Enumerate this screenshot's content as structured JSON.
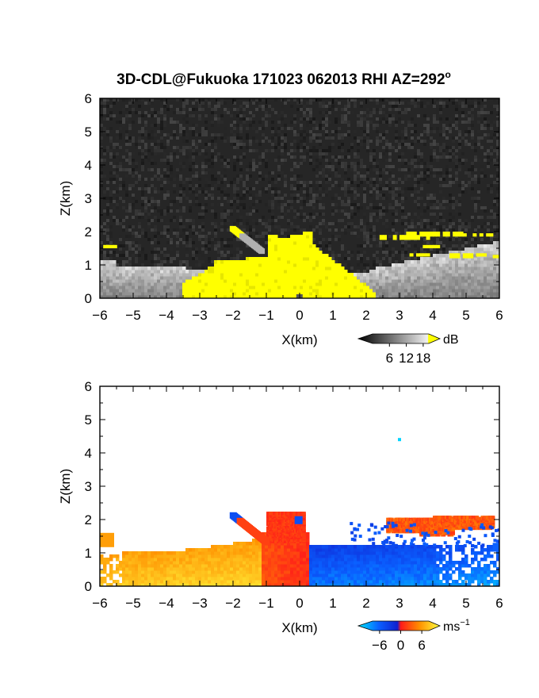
{
  "title_main": "3D-CDL@Fukuoka 171023 062013 RHI AZ=292",
  "title_sup": "o",
  "chart_data": [
    {
      "type": "heatmap",
      "quantity": "backscatter intensity",
      "xlabel": "X(km)",
      "ylabel": "Z(km)",
      "xlim": [
        -6,
        6
      ],
      "ylim": [
        0,
        6
      ],
      "xticks": [
        "-6",
        "-5",
        "-4",
        "-3",
        "-2",
        "-1",
        "0",
        "1",
        "2",
        "3",
        "4",
        "5",
        "6"
      ],
      "yticks": [
        "0",
        "1",
        "2",
        "3",
        "4",
        "5",
        "6"
      ],
      "colorbar": {
        "unit": "dB",
        "ticks": [
          "6",
          "12",
          "18"
        ],
        "tick_values": [
          6,
          12,
          18
        ],
        "range": [
          0,
          20
        ],
        "colors": [
          "#000000",
          "#ffffff",
          "#ffff00"
        ]
      },
      "background": "noise (dark grey, ~0-4 dB)",
      "features": [
        {
          "label": "strong echo core (>=18 dB)",
          "x_range": [
            -3.6,
            2.2
          ],
          "z_range": [
            0,
            2.1
          ]
        },
        {
          "label": "weak echo layer (8-16 dB)",
          "x_range": [
            -6,
            6
          ],
          "z_range": [
            0,
            1.6
          ]
        },
        {
          "label": "elevated echoes (>=18 dB)",
          "x_range": [
            2.4,
            5.8
          ],
          "z_range": [
            1.1,
            2.0
          ]
        }
      ]
    },
    {
      "type": "heatmap",
      "quantity": "Doppler velocity",
      "xlabel": "X(km)",
      "ylabel": "Z(km)",
      "xlim": [
        -6,
        6
      ],
      "ylim": [
        0,
        6
      ],
      "xticks": [
        "-6",
        "-5",
        "-4",
        "-3",
        "-2",
        "-1",
        "0",
        "1",
        "2",
        "3",
        "4",
        "5",
        "6"
      ],
      "yticks": [
        "0",
        "1",
        "2",
        "3",
        "4",
        "5",
        "6"
      ],
      "colorbar": {
        "unit": "ms",
        "unit_sup": "−1",
        "ticks": [
          "−6",
          "0",
          "6"
        ],
        "tick_values": [
          -6,
          0,
          6
        ],
        "range": [
          -8,
          8
        ],
        "colors": [
          "#00e5ff",
          "#0050ff",
          "#1020e0",
          "#ff2020",
          "#ff8a00",
          "#ffff30"
        ]
      },
      "features": [
        {
          "label": "positive velocity (yellow-orange)",
          "x_range": [
            -6,
            -1
          ],
          "z_range": [
            0,
            1.2
          ],
          "velocity_ms": [
            3,
            7
          ]
        },
        {
          "label": "strong positive (red)",
          "x_range": [
            -2.2,
            0.2
          ],
          "z_range": [
            0,
            2.2
          ],
          "velocity_ms": [
            0,
            3
          ]
        },
        {
          "label": "negative velocity (blue)",
          "x_range": [
            0,
            6
          ],
          "z_range": [
            0,
            1.2
          ],
          "velocity_ms": [
            -6,
            -1
          ]
        },
        {
          "label": "elevated positive layer (red)",
          "x_range": [
            2.6,
            5.8
          ],
          "z_range": [
            1.6,
            2.1
          ],
          "velocity_ms": [
            1,
            3
          ]
        },
        {
          "label": "isolated pixel (cyan)",
          "x": 3.0,
          "z": 4.4,
          "velocity_ms": -7
        }
      ]
    }
  ]
}
